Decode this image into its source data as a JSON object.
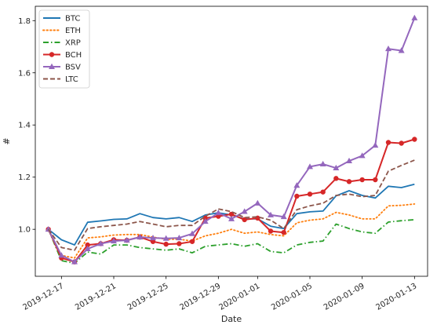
{
  "chart_data": {
    "type": "line",
    "title": "",
    "xlabel": "Date",
    "ylabel": "#",
    "x": [
      "2019-12-16",
      "2019-12-17",
      "2019-12-18",
      "2019-12-19",
      "2019-12-20",
      "2019-12-21",
      "2019-12-22",
      "2019-12-23",
      "2019-12-24",
      "2019-12-25",
      "2019-12-26",
      "2019-12-27",
      "2019-12-28",
      "2019-12-29",
      "2019-12-30",
      "2019-12-31",
      "2020-01-01",
      "2020-01-02",
      "2020-01-03",
      "2020-01-04",
      "2020-01-05",
      "2020-01-06",
      "2020-01-07",
      "2020-01-08",
      "2020-01-09",
      "2020-01-10",
      "2020-01-11",
      "2020-01-12",
      "2020-01-13"
    ],
    "xlim": [
      "2019-12-15",
      "2020-01-14"
    ],
    "ylim": [
      0.82,
      1.855
    ],
    "x_ticks": [
      "2019-12-17",
      "2019-12-21",
      "2019-12-25",
      "2019-12-29",
      "2020-01-01",
      "2020-01-05",
      "2020-01-09",
      "2020-01-13"
    ],
    "y_ticks": [
      "1.0",
      "1.2",
      "1.4",
      "1.6",
      "1.8"
    ],
    "legend_position": "top-left",
    "grid": false,
    "series": [
      {
        "name": "BTC",
        "color": "#1f77b4",
        "dash": "solid",
        "marker": "none",
        "values": [
          1.0,
          0.96,
          0.94,
          1.027,
          1.032,
          1.038,
          1.04,
          1.06,
          1.045,
          1.04,
          1.045,
          1.03,
          1.055,
          1.063,
          1.055,
          1.04,
          1.04,
          1.012,
          1.003,
          1.06,
          1.067,
          1.07,
          1.128,
          1.148,
          1.13,
          1.12,
          1.165,
          1.16,
          1.173
        ]
      },
      {
        "name": "ETH",
        "color": "#ff7f0e",
        "dash": "dotted",
        "marker": "none",
        "values": [
          1.0,
          0.9,
          0.89,
          0.967,
          0.971,
          0.978,
          0.98,
          0.98,
          0.97,
          0.962,
          0.962,
          0.955,
          0.975,
          0.985,
          1.0,
          0.985,
          0.99,
          0.98,
          0.975,
          1.025,
          1.035,
          1.04,
          1.065,
          1.055,
          1.04,
          1.04,
          1.09,
          1.092,
          1.097
        ]
      },
      {
        "name": "XRP",
        "color": "#2ca02c",
        "dash": "dashdot",
        "marker": "none",
        "values": [
          1.0,
          0.88,
          0.87,
          0.913,
          0.905,
          0.94,
          0.94,
          0.93,
          0.925,
          0.92,
          0.925,
          0.91,
          0.935,
          0.94,
          0.945,
          0.935,
          0.945,
          0.915,
          0.91,
          0.94,
          0.95,
          0.955,
          1.02,
          1.003,
          0.99,
          0.985,
          1.028,
          1.033,
          1.037
        ]
      },
      {
        "name": "BCH",
        "color": "#d62728",
        "dash": "solid",
        "marker": "circle",
        "values": [
          1.0,
          0.89,
          0.875,
          0.94,
          0.945,
          0.96,
          0.958,
          0.97,
          0.953,
          0.943,
          0.945,
          0.953,
          1.043,
          1.05,
          1.058,
          1.037,
          1.043,
          0.993,
          0.988,
          1.127,
          1.135,
          1.143,
          1.195,
          1.183,
          1.19,
          1.19,
          1.333,
          1.33,
          1.345
        ]
      },
      {
        "name": "BSV",
        "color": "#9467bd",
        "dash": "solid",
        "marker": "triangle",
        "values": [
          1.0,
          0.9,
          0.875,
          0.925,
          0.945,
          0.955,
          0.958,
          0.97,
          0.967,
          0.965,
          0.967,
          0.983,
          1.03,
          1.063,
          1.04,
          1.068,
          1.1,
          1.055,
          1.048,
          1.168,
          1.24,
          1.25,
          1.235,
          1.262,
          1.282,
          1.322,
          1.692,
          1.685,
          1.81
        ]
      },
      {
        "name": "LTC",
        "color": "#8c564b",
        "dash": "dashed",
        "marker": "none",
        "values": [
          1.0,
          0.93,
          0.92,
          1.003,
          1.01,
          1.015,
          1.02,
          1.03,
          1.02,
          1.01,
          1.015,
          1.015,
          1.05,
          1.078,
          1.068,
          1.045,
          1.048,
          1.035,
          1.003,
          1.075,
          1.09,
          1.1,
          1.13,
          1.135,
          1.125,
          1.13,
          1.223,
          1.245,
          1.265
        ]
      }
    ]
  }
}
